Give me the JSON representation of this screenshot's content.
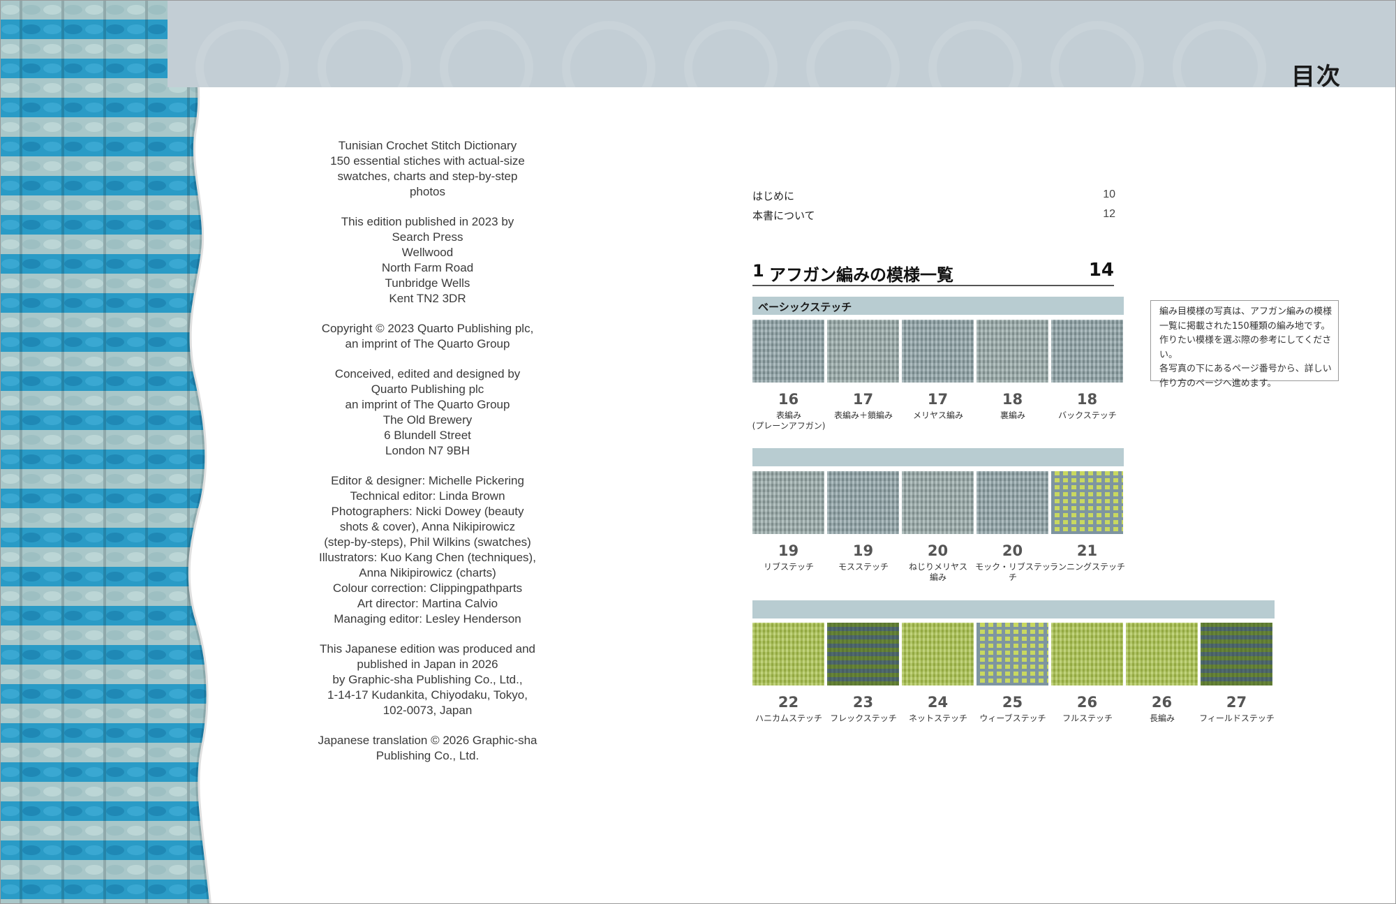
{
  "header": {
    "title": "目次"
  },
  "colophon": {
    "paragraphs": [
      "Tunisian Crochet Stitch Dictionary\n150 essential stiches with actual-size\nswatches, charts and step-by-step\nphotos",
      "This edition published in 2023 by\nSearch Press\nWellwood\nNorth Farm Road\nTunbridge Wells\nKent TN2 3DR",
      "Copyright © 2023 Quarto Publishing plc,\nan imprint of The Quarto Group",
      "Conceived, edited and designed by\nQuarto Publishing plc\nan imprint of The Quarto Group\nThe Old Brewery\n6 Blundell Street\nLondon N7 9BH",
      "Editor & designer: Michelle Pickering\nTechnical editor: Linda Brown\nPhotographers: Nicki Dowey (beauty\nshots & cover), Anna Nikipirowicz\n(step-by-steps), Phil Wilkins (swatches)\nIllustrators: Kuo Kang Chen (techniques),\nAnna Nikipirowicz (charts)\nColour correction: Clippingpathparts\nArt director: Martina Calvio\nManaging editor: Lesley Henderson",
      "This Japanese edition was produced and\npublished in Japan in 2026\nby Graphic-sha Publishing Co., Ltd.,\n1-14-17 Kudankita, Chiyodaku, Tokyo,\n102-0073, Japan",
      "Japanese translation © 2026 Graphic-sha\nPublishing Co., Ltd."
    ]
  },
  "toc": {
    "entries": [
      {
        "label": "はじめに",
        "page": "10"
      },
      {
        "label": "本書について",
        "page": "12"
      }
    ],
    "section": {
      "number": "1",
      "title": "アフガン編みの模様一覧",
      "page": "14"
    }
  },
  "categories": {
    "basic": "ベーシックステッチ",
    "row2": "",
    "row3": ""
  },
  "swatches": {
    "row1": [
      {
        "num": "16",
        "name": "表編み\n(プレーンアフガン)"
      },
      {
        "num": "17",
        "name": "表編み＋鎖編み"
      },
      {
        "num": "17",
        "name": "メリヤス編み"
      },
      {
        "num": "18",
        "name": "裏編み"
      },
      {
        "num": "18",
        "name": "バックステッチ"
      }
    ],
    "row2": [
      {
        "num": "19",
        "name": "リブステッチ"
      },
      {
        "num": "19",
        "name": "モスステッチ"
      },
      {
        "num": "20",
        "name": "ねじりメリヤス\n編み"
      },
      {
        "num": "20",
        "name": "モック・リブステッチ"
      },
      {
        "num": "21",
        "name": "ランニングステッチ"
      }
    ],
    "row3": [
      {
        "num": "22",
        "name": "ハニカムステッチ"
      },
      {
        "num": "23",
        "name": "フレックステッチ"
      },
      {
        "num": "24",
        "name": "ネットステッチ"
      },
      {
        "num": "25",
        "name": "ウィーブステッチ"
      },
      {
        "num": "26",
        "name": "フルステッチ"
      },
      {
        "num": "26",
        "name": "長編み"
      },
      {
        "num": "27",
        "name": "フィールドステッチ"
      }
    ]
  },
  "note": {
    "text": "編み目模様の写真は、アフガン編みの模様\n一覧に掲載された150種類の編み地です。\n作りたい模様を選ぶ際の参考にしてください。\n各写真の下にあるページ番号から、詳しい\n作り方のページへ進めます。"
  },
  "colors": {
    "header_band": "#c3ced5",
    "category_band": "#b8ccd1",
    "knit_blue": "#2a9bc6",
    "knit_pale": "#a9c7c9"
  }
}
